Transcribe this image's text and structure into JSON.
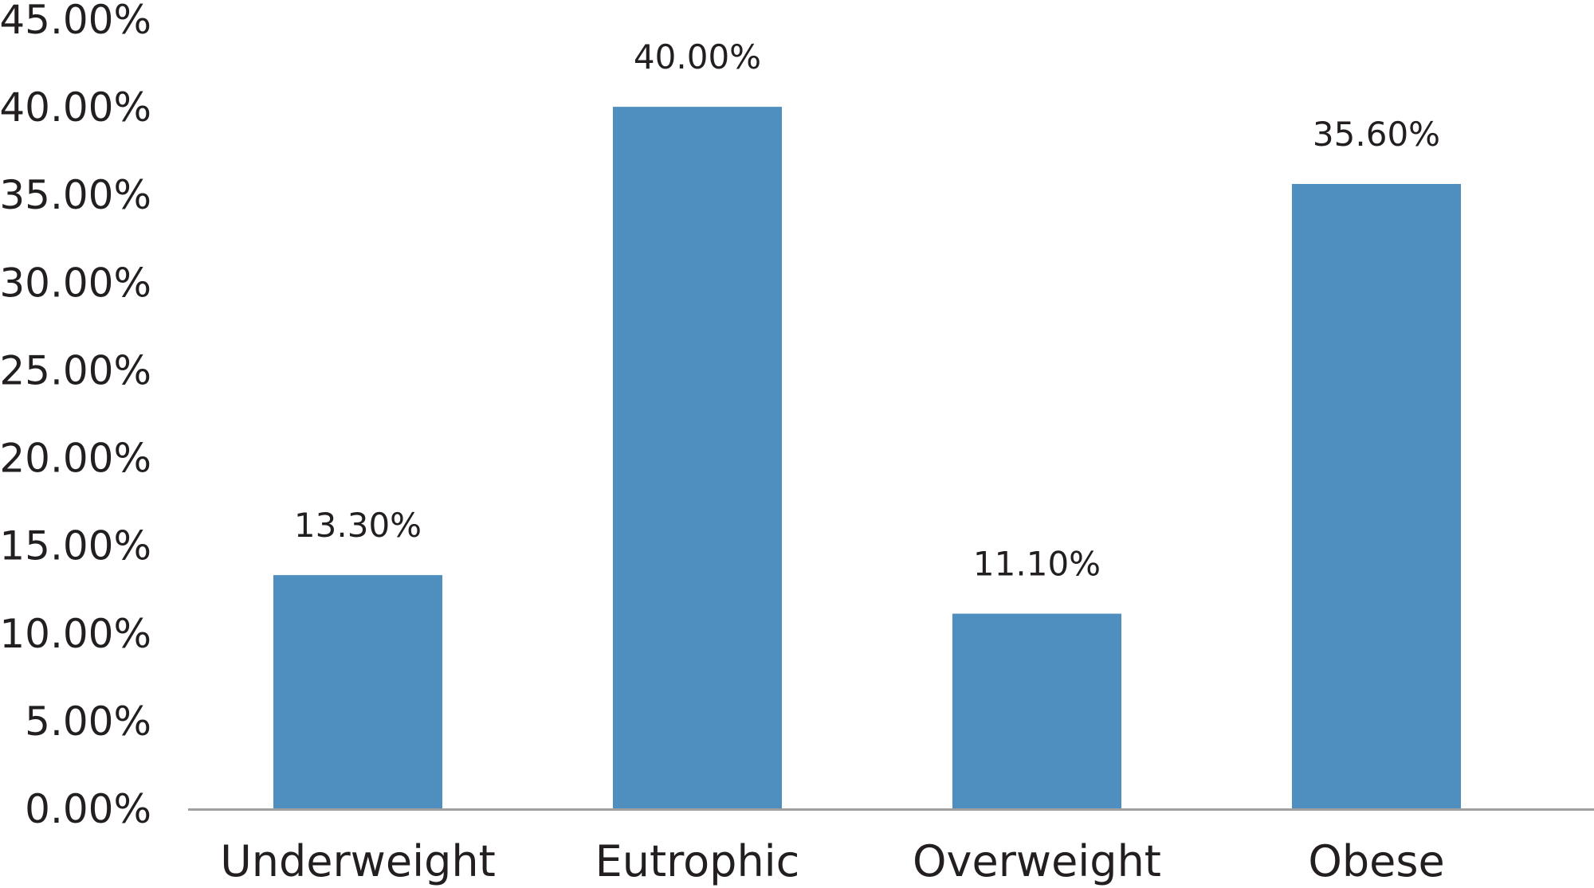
{
  "chart_data": {
    "type": "bar",
    "categories": [
      "Underweight",
      "Eutrophic",
      "Overweight",
      "Obese"
    ],
    "values": [
      13.3,
      40.0,
      11.1,
      35.6
    ],
    "value_labels": [
      "13.30%",
      "40.00%",
      "11.10%",
      "35.60%"
    ],
    "y_ticks": [
      0,
      5,
      10,
      15,
      20,
      25,
      30,
      35,
      40,
      45
    ],
    "y_tick_labels": [
      "0.00%",
      "5.00%",
      "10.00%",
      "15.00%",
      "20.00%",
      "25.00%",
      "30.00%",
      "35.00%",
      "40.00%",
      "45.00%"
    ],
    "ylim": [
      0,
      45
    ],
    "title": "",
    "xlabel": "",
    "ylabel": "",
    "grid": false,
    "legend": "none",
    "colors": {
      "bar": "#4f8fc0",
      "axis": "#a0a0a0",
      "text": "#231f20"
    }
  }
}
